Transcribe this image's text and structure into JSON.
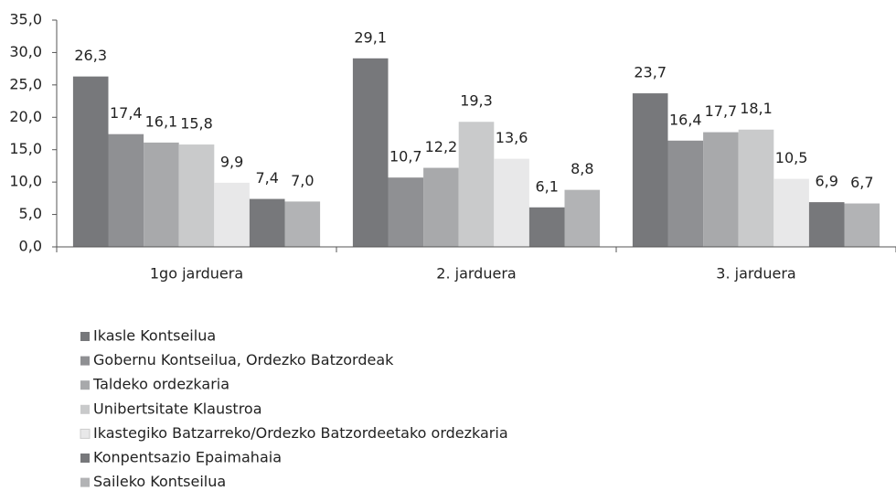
{
  "chart_data": {
    "type": "bar",
    "categories": [
      "1go jarduera",
      "2. jarduera",
      "3. jarduera"
    ],
    "series": [
      {
        "name": "Ikasle Kontseilua",
        "color": "#77787b",
        "values": [
          26.3,
          29.1,
          23.7
        ],
        "value_labels": [
          "26,3",
          "29,1",
          "23,7"
        ]
      },
      {
        "name": "Gobernu Kontseilua, Ordezko Batzordeak",
        "color": "#8f9093",
        "values": [
          17.4,
          10.7,
          16.4
        ],
        "value_labels": [
          "17,4",
          "10,7",
          "16,4"
        ]
      },
      {
        "name": "Taldeko ordezkaria",
        "color": "#a8a9ab",
        "values": [
          16.1,
          12.2,
          17.7
        ],
        "value_labels": [
          "16,1",
          "12,2",
          "17,7"
        ]
      },
      {
        "name": "Unibertsitate Klaustroa",
        "color": "#c9cacb",
        "values": [
          15.8,
          19.3,
          18.1
        ],
        "value_labels": [
          "15,8",
          "19,3",
          "18,1"
        ]
      },
      {
        "name": "Ikastegiko Batzarreko/Ordezko Batzordeetako ordezkaria",
        "color": "#e8e8e9",
        "values": [
          9.9,
          13.6,
          10.5
        ],
        "value_labels": [
          "9,9",
          "13,6",
          "10,5"
        ]
      },
      {
        "name": "Konpentsazio Epaimahaia",
        "color": "#77787b",
        "values": [
          7.4,
          6.1,
          6.9
        ],
        "value_labels": [
          "7,4",
          "6,1",
          "6,9"
        ]
      },
      {
        "name": "Saileko Kontseilua",
        "color": "#b2b3b5",
        "values": [
          7.0,
          8.8,
          6.7
        ],
        "value_labels": [
          "7,0",
          "8,8",
          "6,7"
        ]
      }
    ],
    "ylim": [
      0,
      35
    ],
    "yticks": [
      {
        "value": 0,
        "label": "0,0"
      },
      {
        "value": 5,
        "label": "5,0"
      },
      {
        "value": 10,
        "label": "10,0"
      },
      {
        "value": 15,
        "label": "15,0"
      },
      {
        "value": 20,
        "label": "20,0"
      },
      {
        "value": 25,
        "label": "25,0"
      },
      {
        "value": 30,
        "label": "30,0"
      },
      {
        "value": 35,
        "label": "35,0"
      }
    ],
    "legend": "bottom-left"
  }
}
